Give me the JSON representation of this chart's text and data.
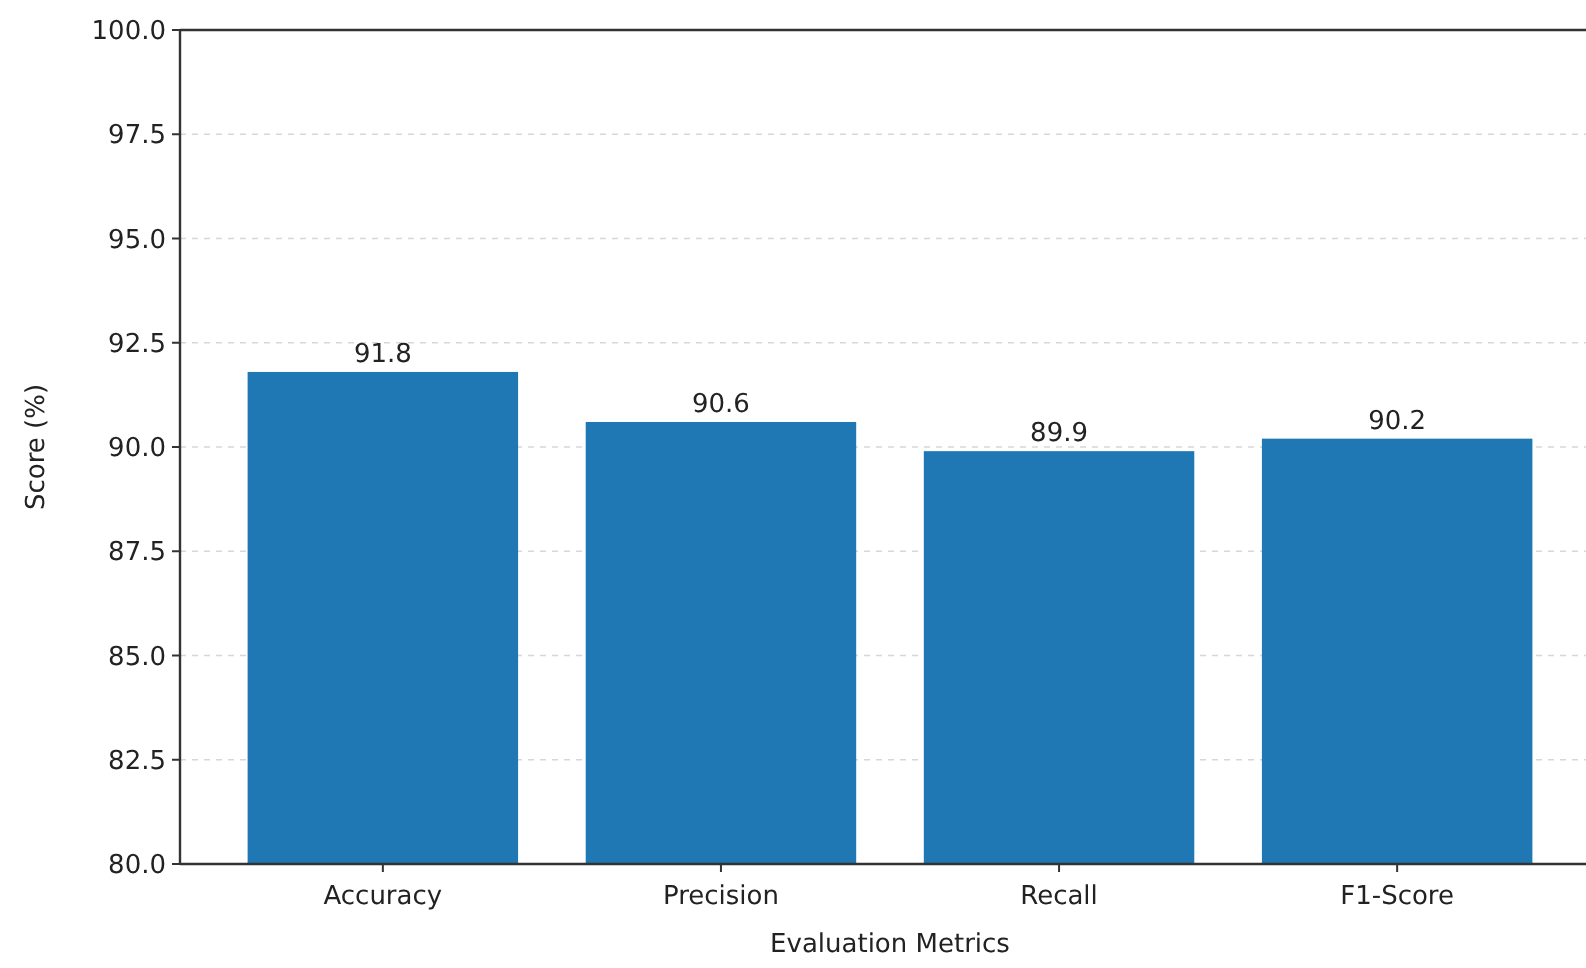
{
  "chart_data": {
    "type": "bar",
    "xlabel": "Evaluation Metrics",
    "ylabel": "Score (%)",
    "categories": [
      "Accuracy",
      "Precision",
      "Recall",
      "F1-Score"
    ],
    "values": [
      91.8,
      90.6,
      89.9,
      90.2
    ],
    "color": "#1f77b4",
    "data_labels": true,
    "ylim": [
      80,
      100
    ],
    "yticks": [
      {
        "value": 80,
        "label": "80.0"
      },
      {
        "value": 82.5,
        "label": "82.5"
      },
      {
        "value": 85,
        "label": "85.0"
      },
      {
        "value": 87.5,
        "label": "87.5"
      },
      {
        "value": 90,
        "label": "90.0"
      },
      {
        "value": 92.5,
        "label": "92.5"
      },
      {
        "value": 95,
        "label": "95.0"
      },
      {
        "value": 97.5,
        "label": "97.5"
      },
      {
        "value": 100,
        "label": "100.0"
      }
    ],
    "grid": "y"
  }
}
